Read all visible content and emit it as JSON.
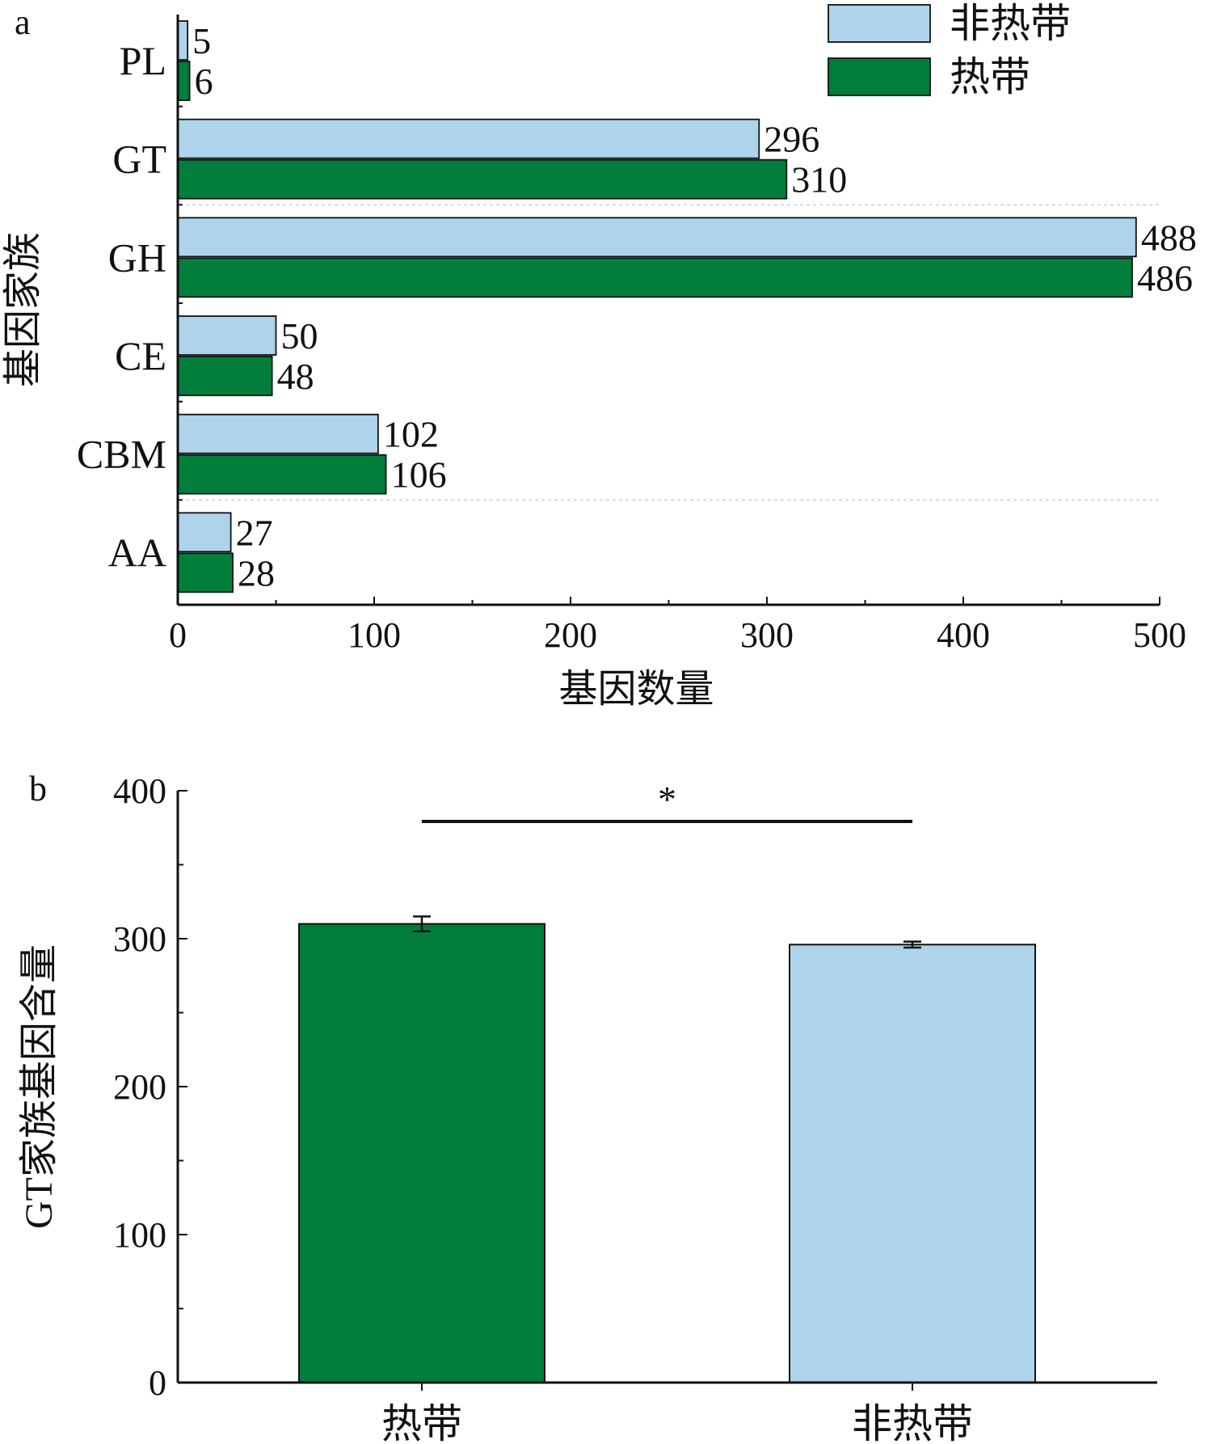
{
  "figure": {
    "panel_a_label": "a",
    "panel_b_label": "b"
  },
  "colors": {
    "tropical": "#017E3C",
    "non_tropical": "#AED4EB",
    "axis": "#111111"
  },
  "chart_data": [
    {
      "type": "bar",
      "orientation": "horizontal",
      "panel": "a",
      "categories": [
        "PL",
        "GT",
        "GH",
        "CE",
        "CBM",
        "AA"
      ],
      "series": [
        {
          "name": "非热带",
          "color": "#AED4EB",
          "values": [
            5,
            296,
            488,
            50,
            102,
            27
          ]
        },
        {
          "name": "热带",
          "color": "#017E3C",
          "values": [
            6,
            310,
            486,
            48,
            106,
            28
          ]
        }
      ],
      "xlabel": "基因数量",
      "ylabel": "基因家族",
      "xlim": [
        0,
        500
      ],
      "xticks": [
        "0",
        "100",
        "200",
        "300",
        "400",
        "500"
      ],
      "legend": "top-right",
      "grid": false
    },
    {
      "type": "bar",
      "orientation": "vertical",
      "panel": "b",
      "categories": [
        "热带",
        "非热带"
      ],
      "values": [
        310,
        296
      ],
      "errors": [
        5,
        2
      ],
      "colors": [
        "#017E3C",
        "#AED4EB"
      ],
      "xlabel": "",
      "ylabel": "GT家族基因含量",
      "ylim": [
        0,
        400
      ],
      "yticks": [
        "0",
        "100",
        "200",
        "300",
        "400"
      ],
      "significance": "*",
      "grid": false
    }
  ]
}
